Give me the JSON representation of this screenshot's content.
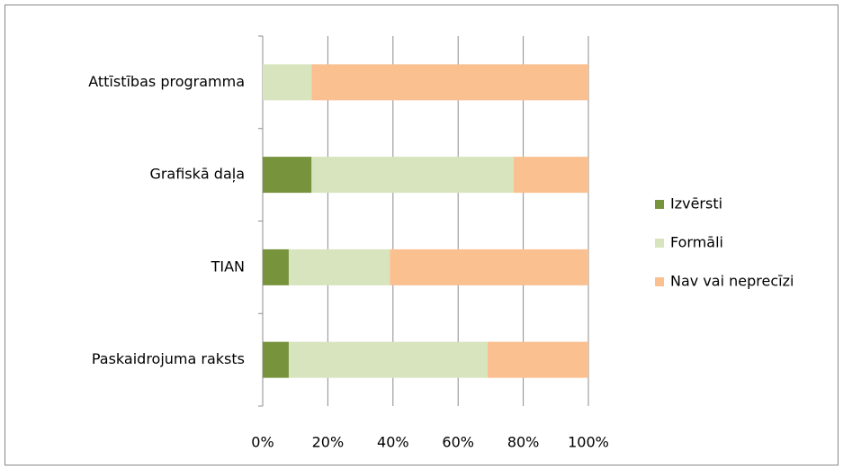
{
  "chart_data": {
    "type": "bar",
    "orientation": "horizontal",
    "stacked": true,
    "categories": [
      "Attīstības programma",
      "Grafiskā daļa",
      "TIAN",
      "Paskaidrojuma raksts"
    ],
    "series": [
      {
        "name": "Izvērsti",
        "color": "#77933c",
        "values": [
          0,
          15,
          8,
          8
        ]
      },
      {
        "name": "Formāli",
        "color": "#d7e4bd",
        "values": [
          15,
          62,
          31,
          61
        ]
      },
      {
        "name": "Nav vai neprecīzi",
        "color": "#fac090",
        "values": [
          85,
          23,
          61,
          31
        ]
      }
    ],
    "xlim": [
      0,
      100
    ],
    "xticks": [
      {
        "value": 0,
        "label": "0%"
      },
      {
        "value": 20,
        "label": "20%"
      },
      {
        "value": 40,
        "label": "40%"
      },
      {
        "value": 60,
        "label": "60%"
      },
      {
        "value": 80,
        "label": "80%"
      },
      {
        "value": 100,
        "label": "100%"
      }
    ],
    "grid": true,
    "legend": "right"
  }
}
